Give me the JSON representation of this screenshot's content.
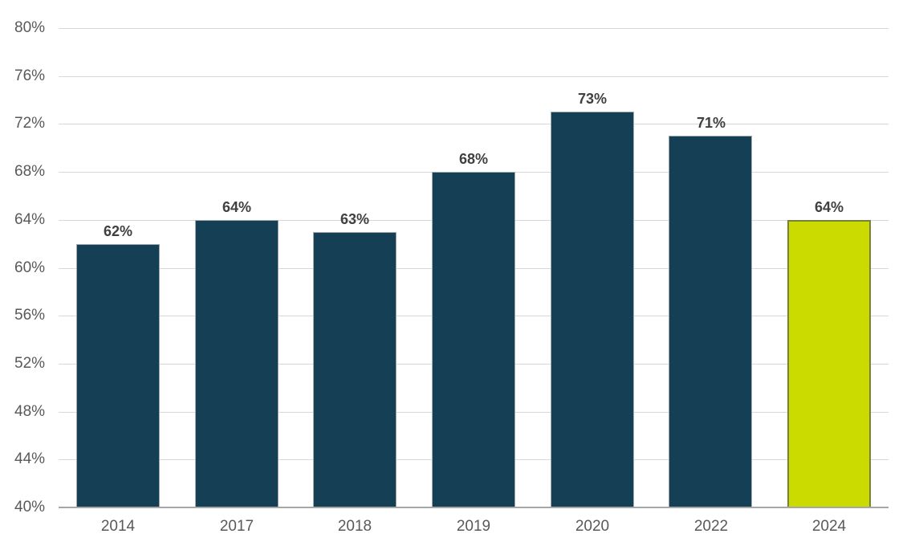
{
  "chart_data": {
    "type": "bar",
    "categories": [
      "2014",
      "2017",
      "2018",
      "2019",
      "2020",
      "2022",
      "2024"
    ],
    "values": [
      62,
      64,
      63,
      68,
      73,
      71,
      64
    ],
    "data_labels": [
      "62%",
      "64%",
      "63%",
      "68%",
      "73%",
      "71%",
      "64%"
    ],
    "title": "",
    "xlabel": "",
    "ylabel": "",
    "ylim": [
      40,
      80
    ],
    "ytick_step": 4,
    "ytick_labels_top_to_bottom": [
      "80%",
      "76%",
      "72%",
      "68%",
      "64%",
      "60%",
      "56%",
      "52%",
      "48%",
      "44%",
      "40%"
    ],
    "grid": "horizontal",
    "legend_position": "none",
    "highlight_index": 6,
    "colors": {
      "bar": "#143F54",
      "bar_border": "#9FA8AC",
      "bar_highlight": "#CBDB00",
      "bar_highlight_border": "#76823B",
      "gridline": "#D6D9DB",
      "axis_line": "#A6A6A6",
      "tick_label": "#595959",
      "data_label": "#404040",
      "background": "#FFFFFF"
    }
  }
}
